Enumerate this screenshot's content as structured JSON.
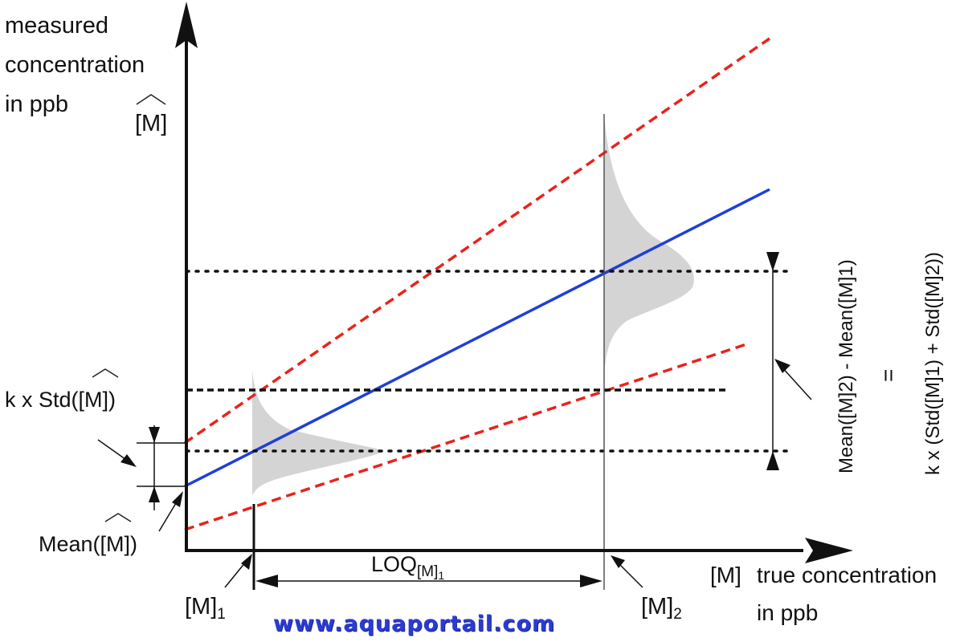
{
  "labels": {
    "y_axis_title": [
      "measured",
      "concentration",
      "in ppb"
    ],
    "y_axis_symbol": "[M]",
    "k_std": "k x Std([M])",
    "mean": "Mean([M])",
    "x_axis_symbol": "[M]",
    "x_axis_title": [
      "true concentration",
      "in ppb"
    ],
    "m1_base": "[M]",
    "m1_sub": "1",
    "m2_base": "[M]",
    "m2_sub": "2",
    "loq_base": "LOQ",
    "loq_sub": "[M]",
    "loq_sub2": "1",
    "rot_difference": "Mean([M]2) - Mean([M]1)",
    "rot_equals": "=",
    "rot_sum": "k x (Std([M]1) + Std([M]2))"
  },
  "colors": {
    "axis": "#111111",
    "calibration_line": "#1f3fd8",
    "confidence_lines": "#e8231c",
    "distribution_fill": "#d4d4d4",
    "watermark": "#2a3bd6"
  },
  "icons": [
    "arrow-up-icon",
    "arrow-right-icon"
  ],
  "watermark": "www.aquaportail.com"
}
